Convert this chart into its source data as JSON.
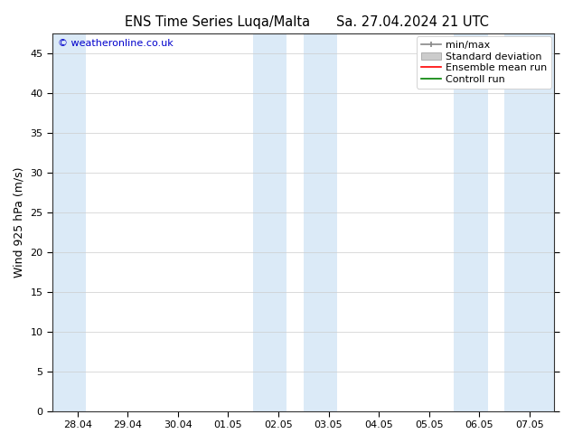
{
  "title_left": "ENS Time Series Luqa/Malta",
  "title_right": "Sa. 27.04.2024 21 UTC",
  "ylabel": "Wind 925 hPa (m/s)",
  "watermark": "© weatheronline.co.uk",
  "watermark_color": "#0000cc",
  "ylim": [
    0,
    47.5
  ],
  "yticks": [
    0,
    5,
    10,
    15,
    20,
    25,
    30,
    35,
    40,
    45
  ],
  "xtick_labels": [
    "28.04",
    "29.04",
    "30.04",
    "01.05",
    "02.05",
    "03.05",
    "04.05",
    "05.05",
    "06.05",
    "07.05"
  ],
  "xtick_positions": [
    0,
    1,
    2,
    3,
    4,
    5,
    6,
    7,
    8,
    9
  ],
  "xlim": [
    -0.5,
    9.5
  ],
  "shade_bands": [
    {
      "xmin": -0.5,
      "xmax": 0.17,
      "color": "#dbeaf7"
    },
    {
      "xmin": 3.5,
      "xmax": 4.17,
      "color": "#dbeaf7"
    },
    {
      "xmin": 4.5,
      "xmax": 5.17,
      "color": "#dbeaf7"
    },
    {
      "xmin": 7.5,
      "xmax": 8.17,
      "color": "#dbeaf7"
    },
    {
      "xmin": 8.5,
      "xmax": 9.5,
      "color": "#dbeaf7"
    }
  ],
  "background_color": "#ffffff",
  "plot_bg_color": "#ffffff",
  "grid_color": "#cccccc",
  "legend_items": [
    {
      "label": "min/max",
      "color": "#888888",
      "lw": 1.2
    },
    {
      "label": "Standard deviation",
      "color": "#cccccc",
      "lw": 5
    },
    {
      "label": "Ensemble mean run",
      "color": "#ff0000",
      "lw": 1.2
    },
    {
      "label": "Controll run",
      "color": "#008000",
      "lw": 1.2
    }
  ],
  "title_fontsize": 10.5,
  "tick_fontsize": 8,
  "legend_fontsize": 8,
  "ylabel_fontsize": 9,
  "watermark_fontsize": 8
}
